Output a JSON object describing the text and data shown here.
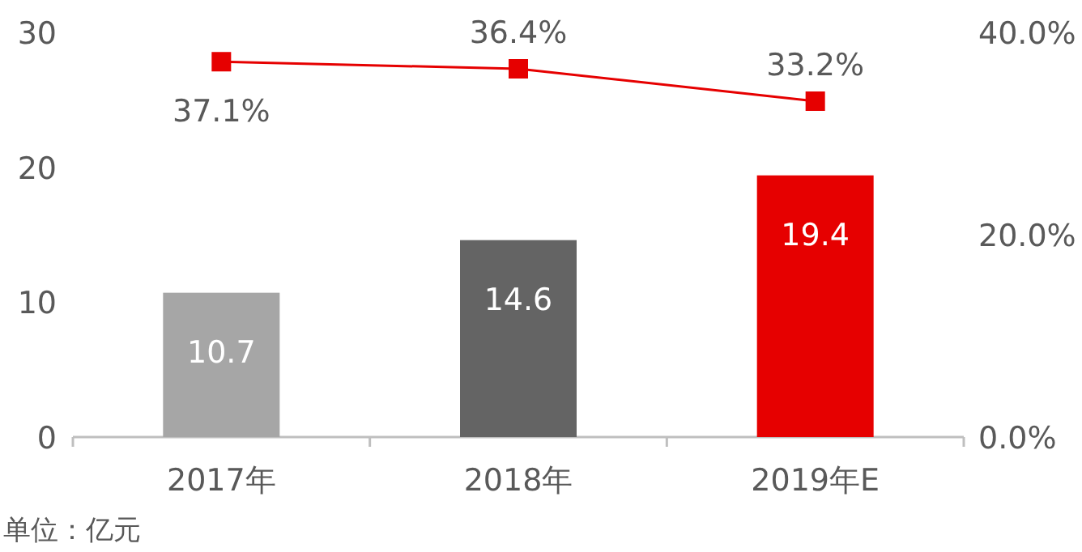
{
  "chart_data": {
    "type": "bar",
    "categories": [
      "2017年",
      "2018年",
      "2019年E"
    ],
    "series": [
      {
        "colors": [
          "#a6a6a6",
          "#646464",
          "#e60000"
        ],
        "values": [
          10.7,
          14.6,
          19.4
        ],
        "value_labels": [
          "10.7",
          "14.6",
          "19.4"
        ]
      },
      {
        "type": "line",
        "axis": "y2",
        "color": "#e60000",
        "marker": "square",
        "values": [
          37.1,
          36.4,
          33.2
        ],
        "value_labels": [
          "37.1%",
          "36.4%",
          "33.2%"
        ]
      }
    ],
    "ylim": [
      0,
      30
    ],
    "yticks": [
      0,
      10,
      20,
      30
    ],
    "y2lim": [
      0,
      40
    ],
    "y2ticks": [
      {
        "value": 0,
        "label": "0.0%"
      },
      {
        "value": 20,
        "label": "20.0%"
      },
      {
        "value": 40,
        "label": "40.0%"
      }
    ],
    "grid": false,
    "annotations": [
      "单位：亿元"
    ]
  }
}
